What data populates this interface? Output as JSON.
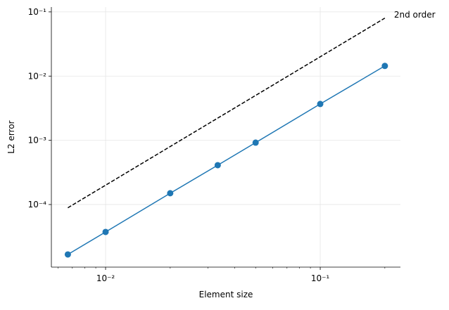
{
  "chart_data": {
    "type": "line",
    "xlabel": "Element size",
    "ylabel": "L2 error",
    "xscale": "log",
    "yscale": "log",
    "grid": true,
    "xlim": [
      0.00559,
      0.2364
    ],
    "ylim": [
      1.06e-05,
      0.119
    ],
    "xticks": [
      {
        "value": 0.01,
        "label": "10⁻²"
      },
      {
        "value": 0.1,
        "label": "10⁻¹"
      }
    ],
    "xminorticks": [
      0.006,
      0.007,
      0.008,
      0.009,
      0.02,
      0.03,
      0.04,
      0.05,
      0.06,
      0.07,
      0.08,
      0.09,
      0.2
    ],
    "yticks": [
      {
        "value": 0.0001,
        "label": "10⁻⁴"
      },
      {
        "value": 0.001,
        "label": "10⁻³"
      },
      {
        "value": 0.01,
        "label": "10⁻²"
      },
      {
        "value": 0.1,
        "label": "10⁻¹"
      }
    ],
    "series": [
      {
        "color": "#1f77b4",
        "marker": true,
        "dashed": false,
        "x": [
          0.00667,
          0.01,
          0.02,
          0.0333,
          0.05,
          0.1,
          0.2
        ],
        "values": [
          1.67e-05,
          3.74e-05,
          0.00015,
          0.00041,
          0.00092,
          0.00368,
          0.0144
        ]
      },
      {
        "name": "2nd order",
        "color": "#000000",
        "marker": false,
        "dashed": true,
        "x": [
          0.00667,
          0.2
        ],
        "values": [
          8.9e-05,
          0.08
        ]
      }
    ]
  }
}
